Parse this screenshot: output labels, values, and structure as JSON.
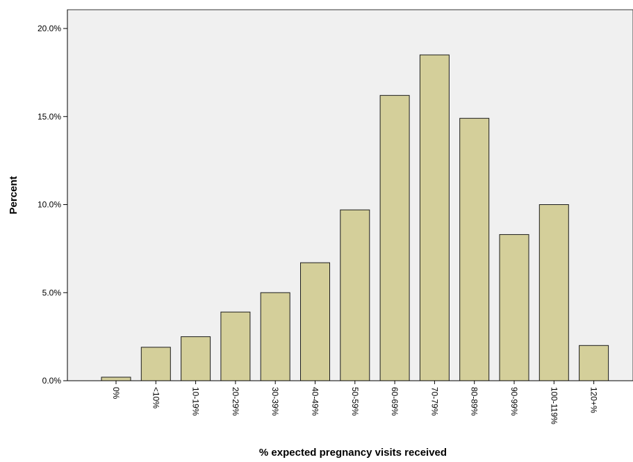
{
  "chart_data": {
    "type": "bar",
    "title": "",
    "xlabel": "% expected pregnancy visits received",
    "ylabel": "Percent",
    "ylim": [
      0,
      20
    ],
    "yticks": [
      0,
      5,
      10,
      15,
      20
    ],
    "ytick_labels": [
      "0.0%",
      "5.0%",
      "10.0%",
      "15.0%",
      "20.0%"
    ],
    "categories": [
      "0%",
      "<10%",
      "10-19%",
      "20-29%",
      "30-39%",
      "40-49%",
      "50-59%",
      "60-69%",
      "70-79%",
      "80-89%",
      "90-99%",
      "100-119%",
      "120+%"
    ],
    "values": [
      0.2,
      1.9,
      2.5,
      3.9,
      5.0,
      6.7,
      9.7,
      16.2,
      18.5,
      14.9,
      8.3,
      10.0,
      2.0
    ],
    "bar_color": "#d4cf9a",
    "bar_edge_color": "#1a1a1a",
    "plot_background": "#f0f0f0",
    "grid": false,
    "legend": "none"
  }
}
